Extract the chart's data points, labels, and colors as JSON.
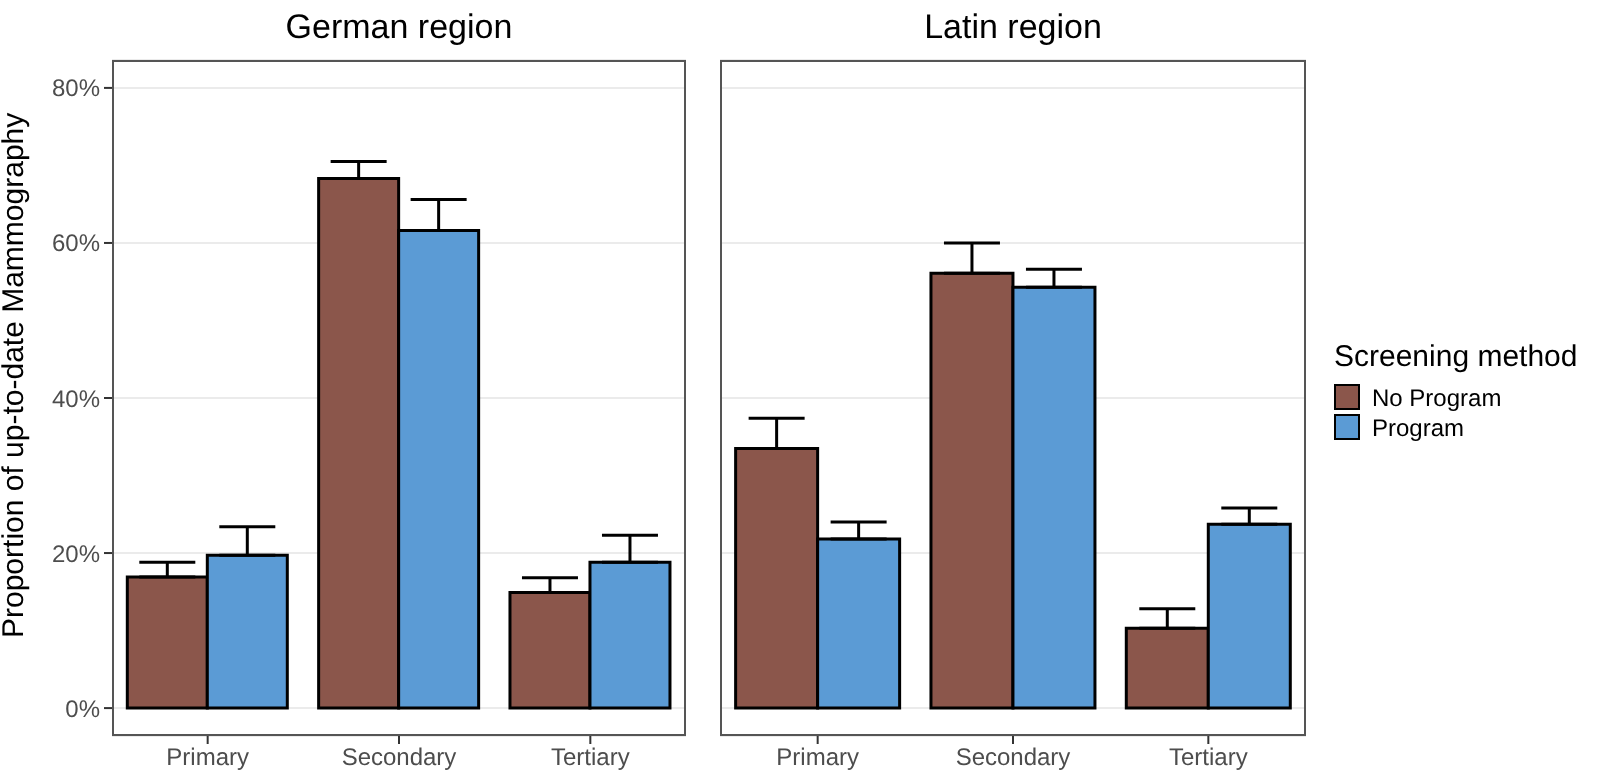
{
  "chart_data": [
    {
      "type": "bar",
      "title": "German region",
      "ylabel": "Proportion of up-to-date Mammography",
      "categories": [
        "Primary",
        "Secondary",
        "Tertiary"
      ],
      "series": [
        {
          "color": "#8b564b",
          "values": [
            16.9,
            68.3,
            14.9
          ],
          "errors": [
            [
              16.9,
              18.8
            ],
            [
              68.3,
              70.5
            ],
            [
              14.9,
              16.8
            ]
          ]
        },
        {
          "color": "#5b9bd5",
          "values": [
            19.7,
            61.6,
            18.8
          ],
          "errors": [
            [
              19.7,
              23.4
            ],
            [
              61.6,
              65.6
            ],
            [
              18.8,
              22.3
            ]
          ]
        }
      ],
      "ylim": [
        -3.6,
        83.6
      ],
      "yticks": [
        {
          "value": 0,
          "label": "0%"
        },
        {
          "value": 20,
          "label": "20%"
        },
        {
          "value": 40,
          "label": "40%"
        },
        {
          "value": 60,
          "label": "60%"
        },
        {
          "value": 80,
          "label": "80%"
        }
      ],
      "grid": "y",
      "legend": false
    },
    {
      "type": "bar",
      "title": "Latin region",
      "legend_title": "Screening method",
      "categories": [
        "Primary",
        "Secondary",
        "Tertiary"
      ],
      "series": [
        {
          "name": "No Program",
          "color": "#8b564b",
          "values": [
            33.5,
            56.1,
            10.3
          ],
          "errors": [
            [
              33.5,
              37.4
            ],
            [
              56.1,
              60.0
            ],
            [
              10.3,
              12.8
            ]
          ]
        },
        {
          "name": "Program",
          "color": "#5b9bd5",
          "values": [
            21.8,
            54.3,
            23.7
          ],
          "errors": [
            [
              21.8,
              24.0
            ],
            [
              54.3,
              56.6
            ],
            [
              23.7,
              25.8
            ]
          ]
        }
      ],
      "ylim": [
        -3.6,
        83.6
      ],
      "yticks": [
        0,
        20,
        40,
        60,
        80
      ],
      "grid": "y",
      "tick_labels": "x",
      "legend": "right"
    }
  ]
}
